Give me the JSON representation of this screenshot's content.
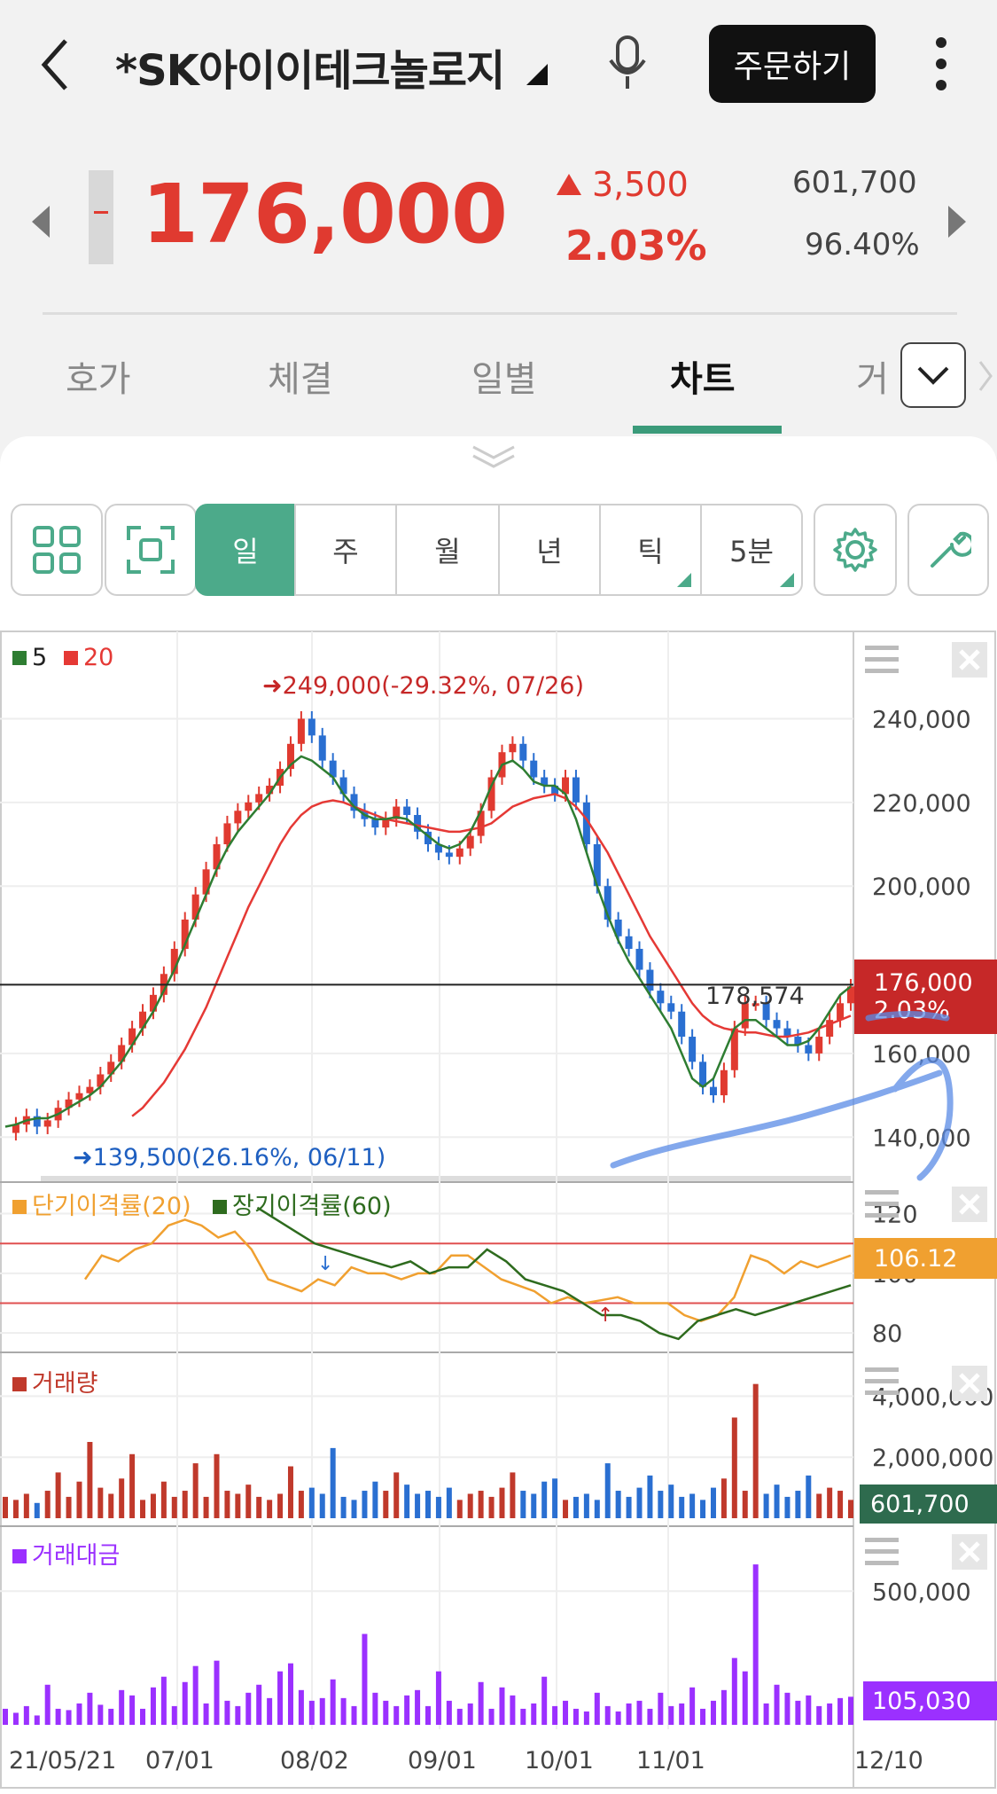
{
  "header": {
    "title": "*SK아이이테크놀로지",
    "order_label": "주문하기"
  },
  "quote": {
    "price": "176,000",
    "change": "3,500",
    "change_pct": "2.03%",
    "volume": "601,700",
    "ratio": "96.40%"
  },
  "tabs": [
    {
      "label": "호가"
    },
    {
      "label": "체결"
    },
    {
      "label": "일별"
    },
    {
      "label": "차트"
    },
    {
      "label": "거"
    }
  ],
  "periods": [
    {
      "label": "일"
    },
    {
      "label": "주"
    },
    {
      "label": "월"
    },
    {
      "label": "년"
    },
    {
      "label": "틱"
    },
    {
      "label": "5분"
    }
  ],
  "colors": {
    "up": "#e03a30",
    "down": "#2a6fd1",
    "accent": "#4caa8a",
    "ma5": "#2e7d32",
    "ma20": "#e53935",
    "short_disp": "#f0a030",
    "long_disp": "#2e6b1e",
    "vol_up": "#c0392b",
    "vol_down": "#2a6fd1",
    "amount": "#9b30ff"
  },
  "chart_data": [
    {
      "type": "candlestick",
      "legend": [
        {
          "name": "5"
        },
        {
          "name": "20"
        }
      ],
      "ylim": [
        132000,
        256000
      ],
      "y_ticks": [
        "240,000",
        "220,000",
        "200,000",
        "160,000",
        "140,000"
      ],
      "x_ticks": [
        "21/05/21",
        "07/01",
        "08/02",
        "09/01",
        "10/01",
        "11/01",
        "12/10"
      ],
      "series_close": [
        141000,
        143000,
        145000,
        142500,
        144000,
        147000,
        149000,
        150500,
        152000,
        155000,
        158000,
        162000,
        166000,
        170000,
        174000,
        179000,
        185000,
        192000,
        198000,
        204000,
        210000,
        215000,
        218000,
        220000,
        222000,
        224000,
        228000,
        234000,
        240000,
        236000,
        230000,
        226000,
        222000,
        218000,
        216000,
        214000,
        216000,
        219000,
        217000,
        213000,
        210000,
        208000,
        207000,
        209000,
        212000,
        218000,
        226000,
        232000,
        234000,
        230000,
        226000,
        224000,
        222000,
        226000,
        220000,
        210000,
        200000,
        192000,
        188000,
        185000,
        180000,
        175000,
        172000,
        170000,
        164000,
        158000,
        152000,
        150000,
        156000,
        166000,
        172000,
        172000,
        168000,
        166000,
        164000,
        162000,
        160000,
        164000,
        168000,
        172000,
        176000
      ],
      "ma5": [
        142500,
        143000,
        144000,
        144500,
        144500,
        145500,
        147000,
        148500,
        150000,
        152000,
        155000,
        158000,
        162000,
        166000,
        170000,
        175000,
        180000,
        186000,
        192000,
        198000,
        204000,
        209000,
        213000,
        216000,
        219000,
        222000,
        226000,
        229000,
        231000,
        230000,
        228000,
        226000,
        222000,
        219000,
        217000,
        216000,
        216000,
        216500,
        216000,
        214000,
        212000,
        210000,
        209000,
        210000,
        213000,
        218000,
        224000,
        229000,
        230000,
        228000,
        225000,
        224000,
        224000,
        222000,
        216000,
        208000,
        200000,
        193000,
        187000,
        182000,
        178000,
        174000,
        170000,
        166000,
        160000,
        154000,
        152000,
        154000,
        160000,
        166000,
        168000,
        168000,
        166000,
        164000,
        162000,
        162000,
        163000,
        166000,
        170000,
        174000,
        176000
      ],
      "ma20": [
        null,
        null,
        null,
        null,
        null,
        null,
        null,
        null,
        null,
        null,
        null,
        null,
        145000,
        147000,
        150000,
        153000,
        157000,
        161000,
        166000,
        171000,
        177000,
        183000,
        189000,
        195000,
        200000,
        205000,
        210000,
        214000,
        217000,
        219000,
        220000,
        220500,
        220000,
        219000,
        218000,
        217000,
        216000,
        215500,
        215000,
        214500,
        214000,
        213500,
        213000,
        213000,
        213500,
        214000,
        215000,
        217000,
        219000,
        220000,
        221000,
        221500,
        222000,
        221000,
        219000,
        216000,
        212000,
        208000,
        203000,
        198000,
        193000,
        188000,
        184000,
        180000,
        176000,
        172000,
        169000,
        167000,
        166000,
        165500,
        165000,
        165000,
        164500,
        164000,
        164000,
        164500,
        165000,
        166000,
        167000,
        168000,
        169000
      ],
      "annotations": [
        {
          "text": "249,000(-29.32%, 07/26)"
        },
        {
          "text": "139,500(26.16%, 06/11)"
        },
        {
          "text": "178,574"
        }
      ],
      "last_price": "176,000",
      "last_change": "2.03%"
    },
    {
      "type": "line",
      "legend": [
        {
          "name": "단기이격률(20)"
        },
        {
          "name": "장기이격률(60)"
        }
      ],
      "ylim": [
        75,
        127
      ],
      "y_ticks": [
        "120",
        "100",
        "80"
      ],
      "reference_lines": [
        110,
        90
      ],
      "short": [
        98,
        106,
        104,
        108,
        110,
        116,
        118,
        116,
        112,
        114,
        108,
        98,
        96,
        94,
        98,
        96,
        102,
        100,
        100,
        98,
        100,
        100,
        106,
        106,
        102,
        98,
        96,
        94,
        90,
        92,
        90,
        91,
        92,
        90,
        90,
        90,
        86,
        84,
        86,
        92,
        106,
        104,
        100,
        104,
        102,
        104,
        106
      ],
      "long": [
        null,
        null,
        null,
        null,
        null,
        null,
        null,
        null,
        null,
        122,
        118,
        114,
        110,
        108,
        106,
        104,
        102,
        104,
        100,
        102,
        102,
        108,
        104,
        98,
        96,
        94,
        90,
        86,
        86,
        84,
        80,
        78,
        84,
        86,
        88,
        86,
        88,
        90,
        92,
        94,
        96
      ],
      "last_value": "106.12"
    },
    {
      "type": "bar",
      "legend": [
        {
          "name": "거래량"
        }
      ],
      "ylim": [
        0,
        5000000
      ],
      "y_ticks": [
        "4,000,000",
        "2,000,000"
      ],
      "values": [
        700000,
        600000,
        800000,
        500000,
        900000,
        1500000,
        700000,
        1200000,
        2500000,
        1000000,
        800000,
        1300000,
        2100000,
        600000,
        800000,
        1200000,
        700000,
        900000,
        1800000,
        700000,
        2100000,
        900000,
        800000,
        1100000,
        700000,
        600000,
        800000,
        1700000,
        900000,
        1000000,
        800000,
        2300000,
        700000,
        600000,
        900000,
        1200000,
        900000,
        1500000,
        1100000,
        800000,
        900000,
        700000,
        1000000,
        600000,
        800000,
        900000,
        700000,
        1000000,
        1500000,
        900000,
        800000,
        1200000,
        1300000,
        600000,
        700000,
        800000,
        600000,
        1800000,
        900000,
        700000,
        1000000,
        1400000,
        900000,
        1100000,
        700000,
        800000,
        600000,
        1000000,
        1300000,
        3300000,
        900000,
        4400000,
        800000,
        1100000,
        700000,
        900000,
        1400000,
        800000,
        1000000,
        900000,
        600000
      ],
      "last_value": "601,700"
    },
    {
      "type": "bar",
      "legend": [
        {
          "name": "거래대금"
        }
      ],
      "ylim": [
        0,
        680000
      ],
      "y_ticks": [
        "500,000"
      ],
      "values": [
        60000,
        45000,
        70000,
        35000,
        150000,
        60000,
        55000,
        80000,
        120000,
        75000,
        60000,
        130000,
        110000,
        60000,
        140000,
        180000,
        70000,
        160000,
        220000,
        80000,
        240000,
        90000,
        70000,
        120000,
        150000,
        100000,
        200000,
        230000,
        130000,
        90000,
        100000,
        170000,
        100000,
        70000,
        340000,
        120000,
        90000,
        70000,
        110000,
        130000,
        70000,
        200000,
        90000,
        60000,
        80000,
        160000,
        60000,
        140000,
        110000,
        60000,
        80000,
        180000,
        70000,
        90000,
        60000,
        50000,
        120000,
        70000,
        50000,
        80000,
        90000,
        60000,
        120000,
        70000,
        80000,
        140000,
        60000,
        90000,
        130000,
        250000,
        200000,
        600000,
        80000,
        150000,
        120000,
        90000,
        110000,
        70000,
        80000,
        100000,
        105030
      ],
      "last_value": "105,030"
    }
  ]
}
